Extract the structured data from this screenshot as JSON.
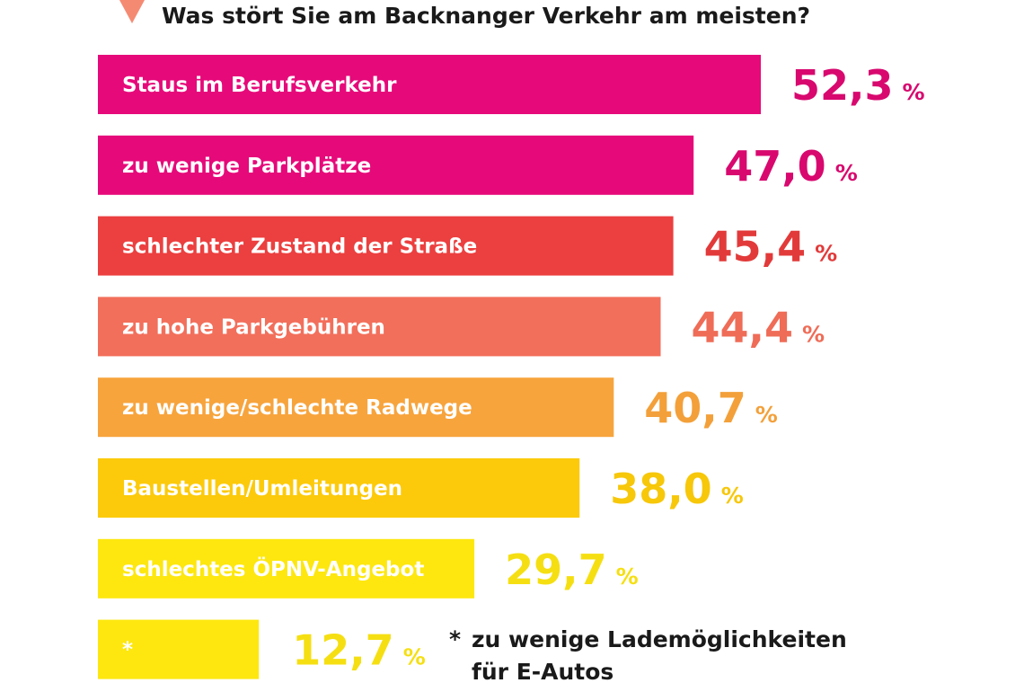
{
  "chart_data": {
    "type": "bar",
    "orientation": "horizontal",
    "title": "Was stört Sie am Backnanger Verkehr am meisten?",
    "categories": [
      "Staus im Berufsverkehr",
      "zu wenige Parkplätze",
      "schlechter Zustand der Straße",
      "zu hohe Parkgebühren",
      "zu wenige/schlechte Radwege",
      "Baustellen/Umleitungen",
      "schlechtes ÖPNV-Angebot",
      "*"
    ],
    "values": [
      52.3,
      47.0,
      45.4,
      44.4,
      40.7,
      38.0,
      29.7,
      12.7
    ],
    "value_labels": [
      "52,3",
      "47,0",
      "45,4",
      "44,4",
      "40,7",
      "38,0",
      "29,7",
      "12,7"
    ],
    "unit": "%",
    "colors": [
      "#e6097a",
      "#e6097a",
      "#ec3f3f",
      "#f26f5b",
      "#f7a43d",
      "#fcca0a",
      "#fde70f",
      "#fde70f"
    ],
    "value_colors": [
      "#d8086f",
      "#d8086f",
      "#e23a3a",
      "#ef6c57",
      "#f3a03a",
      "#f7c70a",
      "#f5df12",
      "#f5df12"
    ],
    "title_marker_color": "#f58a73",
    "footnote": {
      "marker": "*",
      "lines": [
        "zu wenige Lademöglichkeiten",
        "für E-Autos"
      ]
    }
  }
}
